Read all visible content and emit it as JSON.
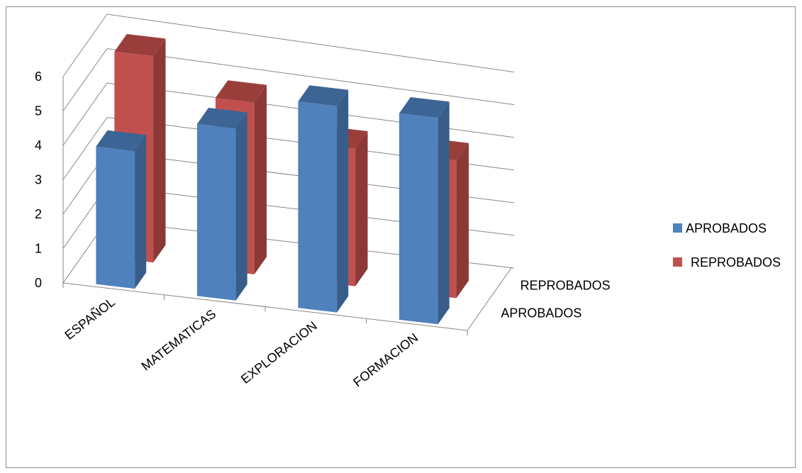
{
  "chart_data": {
    "type": "bar",
    "title": "",
    "categories": [
      "ESPAÑOL",
      "MATEMATICAS",
      "EXPLORACION",
      "FORMACION"
    ],
    "series": [
      {
        "name": "APROBADOS",
        "values": [
          4,
          5,
          6,
          6
        ]
      },
      {
        "name": "REPROBADOS",
        "values": [
          6,
          5,
          4,
          4
        ]
      }
    ],
    "depth_labels": [
      "REPROBADOS",
      "APROBADOS"
    ],
    "ylim": [
      0,
      6
    ],
    "yticks": [
      0,
      1,
      2,
      3,
      4,
      5,
      6
    ],
    "grid": true,
    "legend_position": "right",
    "three_d": true
  },
  "colors": {
    "series": [
      "#4f81bd",
      "#c0504d"
    ],
    "series_side": [
      "#385d8a",
      "#8c3836"
    ],
    "series_top": [
      "#3c6494",
      "#9a3e3b"
    ],
    "grid": "#868686"
  }
}
